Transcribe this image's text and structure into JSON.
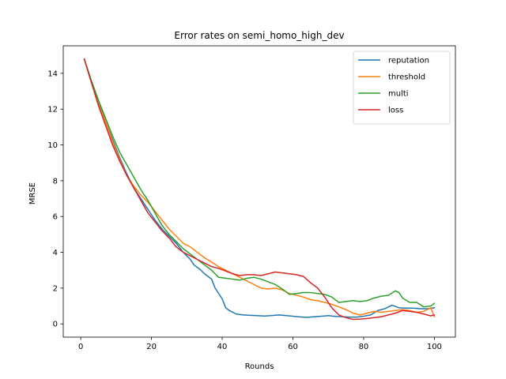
{
  "chart_data": {
    "type": "line",
    "title": "Error rates on semi_homo_high_dev",
    "xlabel": "Rounds",
    "ylabel": "MRSE",
    "xlim": [
      -4.95,
      105.95
    ],
    "ylim": [
      -0.74,
      15.54
    ],
    "xticks": [
      0,
      20,
      40,
      60,
      80,
      100
    ],
    "yticks": [
      0,
      2,
      4,
      6,
      8,
      10,
      12,
      14
    ],
    "grid": false,
    "legend": "top-right",
    "series": [
      {
        "name": "reputation",
        "color": "#1f77b4",
        "points": [
          [
            1,
            14.8
          ],
          [
            3,
            13.5
          ],
          [
            5,
            12.4
          ],
          [
            7,
            11.3
          ],
          [
            9,
            10.3
          ],
          [
            11,
            9.3
          ],
          [
            13,
            8.4
          ],
          [
            15,
            7.6
          ],
          [
            17,
            7.0
          ],
          [
            19,
            6.4
          ],
          [
            21,
            5.8
          ],
          [
            23,
            5.3
          ],
          [
            25,
            4.9
          ],
          [
            27,
            4.5
          ],
          [
            29,
            4.0
          ],
          [
            31,
            3.6
          ],
          [
            32,
            3.3
          ],
          [
            34,
            3.0
          ],
          [
            35,
            2.8
          ],
          [
            37,
            2.5
          ],
          [
            38,
            2.0
          ],
          [
            40,
            1.4
          ],
          [
            41,
            0.9
          ],
          [
            42,
            0.75
          ],
          [
            44,
            0.55
          ],
          [
            46,
            0.5
          ],
          [
            48,
            0.48
          ],
          [
            50,
            0.46
          ],
          [
            52,
            0.44
          ],
          [
            54,
            0.47
          ],
          [
            56,
            0.5
          ],
          [
            58,
            0.47
          ],
          [
            60,
            0.43
          ],
          [
            62,
            0.39
          ],
          [
            64,
            0.37
          ],
          [
            66,
            0.4
          ],
          [
            68,
            0.43
          ],
          [
            70,
            0.46
          ],
          [
            72,
            0.42
          ],
          [
            74,
            0.4
          ],
          [
            76,
            0.38
          ],
          [
            78,
            0.38
          ],
          [
            80,
            0.43
          ],
          [
            82,
            0.5
          ],
          [
            84,
            0.75
          ],
          [
            86,
            0.85
          ],
          [
            88,
            1.05
          ],
          [
            90,
            0.9
          ],
          [
            92,
            0.88
          ],
          [
            94,
            0.88
          ],
          [
            96,
            0.85
          ],
          [
            98,
            0.85
          ],
          [
            100,
            0.9
          ]
        ]
      },
      {
        "name": "threshold",
        "color": "#ff7f0e",
        "points": [
          [
            1,
            14.8
          ],
          [
            3,
            13.5
          ],
          [
            5,
            12.3
          ],
          [
            7,
            11.3
          ],
          [
            9,
            10.2
          ],
          [
            11,
            9.2
          ],
          [
            13,
            8.3
          ],
          [
            15,
            7.7
          ],
          [
            17,
            7.2
          ],
          [
            19,
            6.8
          ],
          [
            21,
            6.3
          ],
          [
            23,
            5.8
          ],
          [
            25,
            5.3
          ],
          [
            27,
            4.9
          ],
          [
            29,
            4.5
          ],
          [
            31,
            4.3
          ],
          [
            33,
            4.0
          ],
          [
            35,
            3.7
          ],
          [
            37,
            3.45
          ],
          [
            39,
            3.2
          ],
          [
            41,
            3.0
          ],
          [
            43,
            2.8
          ],
          [
            45,
            2.6
          ],
          [
            47,
            2.4
          ],
          [
            49,
            2.2
          ],
          [
            51,
            2.0
          ],
          [
            53,
            1.95
          ],
          [
            55,
            2.0
          ],
          [
            57,
            1.9
          ],
          [
            59,
            1.7
          ],
          [
            61,
            1.6
          ],
          [
            63,
            1.5
          ],
          [
            65,
            1.35
          ],
          [
            67,
            1.3
          ],
          [
            69,
            1.2
          ],
          [
            71,
            1.1
          ],
          [
            73,
            0.95
          ],
          [
            75,
            0.8
          ],
          [
            77,
            0.6
          ],
          [
            79,
            0.5
          ],
          [
            81,
            0.6
          ],
          [
            83,
            0.7
          ],
          [
            85,
            0.65
          ],
          [
            87,
            0.7
          ],
          [
            89,
            0.75
          ],
          [
            91,
            0.8
          ],
          [
            93,
            0.75
          ],
          [
            95,
            0.65
          ],
          [
            97,
            0.7
          ],
          [
            99,
            0.9
          ],
          [
            100,
            0.4
          ]
        ]
      },
      {
        "name": "multi",
        "color": "#2ca02c",
        "points": [
          [
            1,
            14.8
          ],
          [
            3,
            13.6
          ],
          [
            5,
            12.5
          ],
          [
            7,
            11.5
          ],
          [
            9,
            10.5
          ],
          [
            11,
            9.6
          ],
          [
            13,
            8.9
          ],
          [
            15,
            8.2
          ],
          [
            17,
            7.5
          ],
          [
            19,
            6.9
          ],
          [
            21,
            6.2
          ],
          [
            23,
            5.5
          ],
          [
            25,
            5.0
          ],
          [
            27,
            4.6
          ],
          [
            29,
            4.2
          ],
          [
            31,
            3.9
          ],
          [
            33,
            3.6
          ],
          [
            35,
            3.3
          ],
          [
            37,
            3.0
          ],
          [
            39,
            2.6
          ],
          [
            41,
            2.55
          ],
          [
            43,
            2.5
          ],
          [
            45,
            2.45
          ],
          [
            47,
            2.55
          ],
          [
            49,
            2.6
          ],
          [
            51,
            2.5
          ],
          [
            53,
            2.35
          ],
          [
            55,
            2.2
          ],
          [
            57,
            1.95
          ],
          [
            59,
            1.65
          ],
          [
            61,
            1.7
          ],
          [
            63,
            1.75
          ],
          [
            65,
            1.75
          ],
          [
            67,
            1.7
          ],
          [
            69,
            1.65
          ],
          [
            71,
            1.5
          ],
          [
            73,
            1.2
          ],
          [
            75,
            1.25
          ],
          [
            77,
            1.3
          ],
          [
            79,
            1.25
          ],
          [
            81,
            1.3
          ],
          [
            83,
            1.45
          ],
          [
            85,
            1.55
          ],
          [
            87,
            1.6
          ],
          [
            89,
            1.85
          ],
          [
            90,
            1.75
          ],
          [
            91,
            1.45
          ],
          [
            93,
            1.2
          ],
          [
            95,
            1.2
          ],
          [
            97,
            0.95
          ],
          [
            99,
            1.0
          ],
          [
            100,
            1.15
          ]
        ]
      },
      {
        "name": "loss",
        "color": "#d62728",
        "points": [
          [
            1,
            14.8
          ],
          [
            3,
            13.5
          ],
          [
            5,
            12.2
          ],
          [
            7,
            11.1
          ],
          [
            9,
            10.0
          ],
          [
            11,
            9.1
          ],
          [
            13,
            8.3
          ],
          [
            15,
            7.6
          ],
          [
            17,
            6.9
          ],
          [
            19,
            6.2
          ],
          [
            21,
            5.7
          ],
          [
            23,
            5.2
          ],
          [
            25,
            4.8
          ],
          [
            27,
            4.3
          ],
          [
            29,
            4.0
          ],
          [
            31,
            3.8
          ],
          [
            33,
            3.6
          ],
          [
            35,
            3.4
          ],
          [
            37,
            3.2
          ],
          [
            39,
            3.1
          ],
          [
            41,
            2.95
          ],
          [
            43,
            2.8
          ],
          [
            45,
            2.7
          ],
          [
            47,
            2.75
          ],
          [
            49,
            2.75
          ],
          [
            51,
            2.7
          ],
          [
            53,
            2.8
          ],
          [
            55,
            2.9
          ],
          [
            57,
            2.85
          ],
          [
            59,
            2.8
          ],
          [
            61,
            2.75
          ],
          [
            63,
            2.65
          ],
          [
            65,
            2.3
          ],
          [
            67,
            2.0
          ],
          [
            69,
            1.5
          ],
          [
            71,
            0.9
          ],
          [
            73,
            0.5
          ],
          [
            75,
            0.35
          ],
          [
            77,
            0.25
          ],
          [
            79,
            0.27
          ],
          [
            81,
            0.3
          ],
          [
            83,
            0.35
          ],
          [
            85,
            0.4
          ],
          [
            87,
            0.5
          ],
          [
            89,
            0.6
          ],
          [
            91,
            0.75
          ],
          [
            93,
            0.7
          ],
          [
            95,
            0.65
          ],
          [
            97,
            0.55
          ],
          [
            99,
            0.45
          ],
          [
            100,
            0.5
          ]
        ]
      }
    ]
  }
}
